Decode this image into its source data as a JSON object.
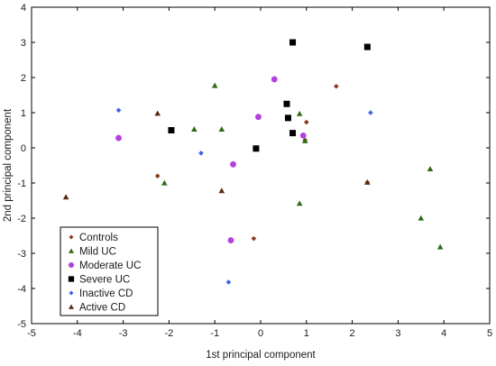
{
  "chart_data": {
    "type": "scatter",
    "xlabel": "1st principal component",
    "ylabel": "2nd principal component",
    "xlim": [
      -5,
      5
    ],
    "ylim": [
      -5,
      4
    ],
    "xticks": [
      "-5",
      "-4",
      "-3",
      "-2",
      "-1",
      "0",
      "1",
      "2",
      "3",
      "4",
      "5"
    ],
    "yticks": [
      "-5",
      "-4",
      "-3",
      "-2",
      "-1",
      "0",
      "1",
      "2",
      "3",
      "4"
    ],
    "grid": false,
    "legend_position": "bottom-left",
    "series": [
      {
        "name": "Controls",
        "marker": "diamond",
        "color": "#8b3a1e",
        "points": [
          [
            1.0,
            0.73
          ],
          [
            1.65,
            1.75
          ],
          [
            -2.25,
            -0.8
          ],
          [
            -0.15,
            -2.58
          ],
          [
            2.33,
            -0.98
          ],
          [
            0.97,
            0.22
          ]
        ]
      },
      {
        "name": "Mild UC",
        "marker": "triangle",
        "color": "#2e6b12",
        "points": [
          [
            -1.0,
            1.77
          ],
          [
            -1.45,
            0.53
          ],
          [
            -0.85,
            0.53
          ],
          [
            0.85,
            0.97
          ],
          [
            -2.1,
            -1.0
          ],
          [
            0.85,
            -1.58
          ],
          [
            3.7,
            -0.6
          ],
          [
            3.5,
            -2.0
          ],
          [
            3.92,
            -2.82
          ],
          [
            0.97,
            0.2
          ]
        ]
      },
      {
        "name": "Moderate UC",
        "marker": "circle",
        "color": "#b540e0",
        "points": [
          [
            0.3,
            1.95
          ],
          [
            -0.05,
            0.88
          ],
          [
            0.93,
            0.35
          ],
          [
            -3.1,
            0.28
          ],
          [
            -0.6,
            -0.47
          ],
          [
            -0.65,
            -2.63
          ]
        ]
      },
      {
        "name": "Severe UC",
        "marker": "square",
        "color": "#000000",
        "points": [
          [
            0.7,
            3.0
          ],
          [
            2.33,
            2.87
          ],
          [
            0.57,
            1.25
          ],
          [
            0.6,
            0.85
          ],
          [
            0.7,
            0.42
          ],
          [
            -1.95,
            0.5
          ],
          [
            -0.1,
            -0.02
          ]
        ]
      },
      {
        "name": "Inactive CD",
        "marker": "diamond",
        "color": "#3b63e8",
        "points": [
          [
            -3.1,
            1.07
          ],
          [
            2.4,
            1.0
          ],
          [
            -1.3,
            -0.15
          ],
          [
            -0.7,
            -3.82
          ]
        ]
      },
      {
        "name": "Active CD",
        "marker": "triangle",
        "color": "#5a2a14",
        "points": [
          [
            -2.25,
            0.98
          ],
          [
            -4.25,
            -1.4
          ],
          [
            -0.85,
            -1.22
          ],
          [
            2.33,
            -0.98
          ]
        ]
      }
    ]
  }
}
